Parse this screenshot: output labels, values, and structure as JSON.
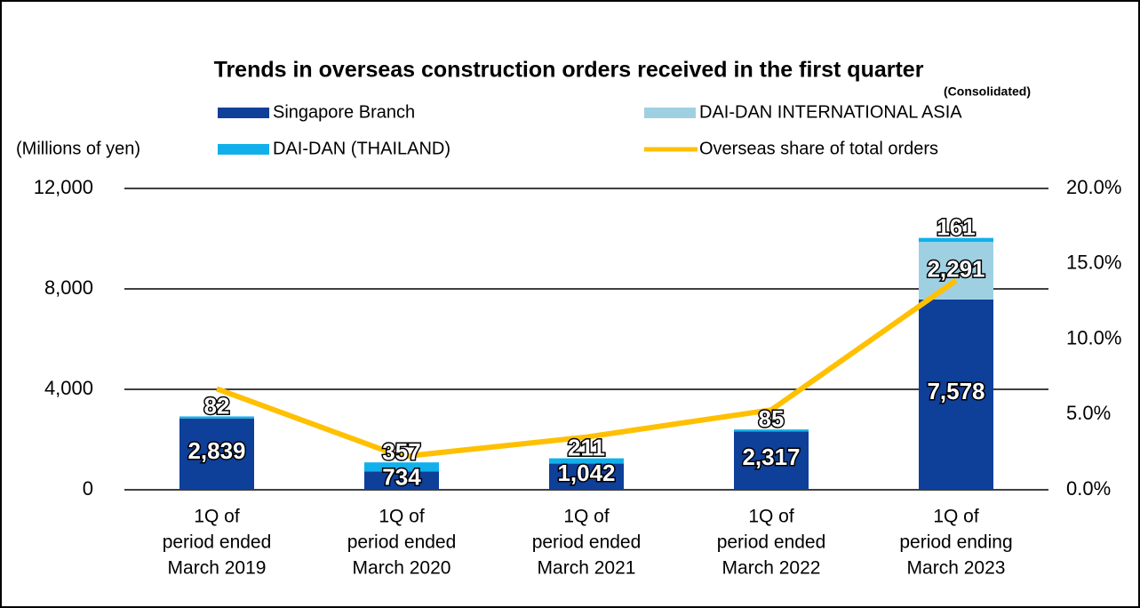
{
  "chart_data": {
    "type": "bar",
    "title": "Trends in overseas construction orders received in the first quarter",
    "subtitle": "(Consolidated)",
    "y_label": "(Millions of yen)",
    "categories": [
      [
        "1Q of",
        "period ended",
        "March 2019"
      ],
      [
        "1Q of",
        "period ended",
        "March 2020"
      ],
      [
        "1Q of",
        "period ended",
        "March 2021"
      ],
      [
        "1Q of",
        "period ended",
        "March 2022"
      ],
      [
        "1Q of",
        "period ending",
        "March 2023"
      ]
    ],
    "series": [
      {
        "name": "Singapore Branch",
        "color": "#0e3f99",
        "values": [
          2839,
          734,
          1042,
          2317,
          7578
        ],
        "value_labels": [
          "2,839",
          "734",
          "1,042",
          "2,317",
          "7,578"
        ]
      },
      {
        "name": "DAI-DAN INTERNATIONAL ASIA",
        "color": "#9fd0e2",
        "values": [
          null,
          null,
          null,
          null,
          2291
        ],
        "value_labels": [
          null,
          null,
          null,
          null,
          "2,291"
        ]
      },
      {
        "name": "DAI-DAN (THAILAND)",
        "color": "#12b0ea",
        "values": [
          82,
          357,
          211,
          85,
          161
        ]
      },
      {
        "name": "Overseas share of total orders",
        "color": "#ffc000",
        "type": "line",
        "axis": "y2",
        "values": [
          6.7,
          2.2,
          3.5,
          5.3,
          13.9
        ]
      }
    ],
    "ylim": [
      0,
      12000
    ],
    "yticks": [
      0,
      {
        "value": 4000,
        "label": "4,000"
      },
      {
        "value": 8000,
        "label": "8,000"
      },
      {
        "value": 12000,
        "label": "12,000"
      }
    ],
    "y2lim": [
      0,
      20
    ],
    "y2ticks": [
      {
        "value": 0,
        "label": "0.0%"
      },
      {
        "value": 5,
        "label": "5.0%"
      },
      {
        "value": 10,
        "label": "10.0%"
      },
      {
        "value": 15,
        "label": "15.0%"
      },
      {
        "value": 20,
        "label": "20.0%"
      }
    ],
    "grid": true
  }
}
